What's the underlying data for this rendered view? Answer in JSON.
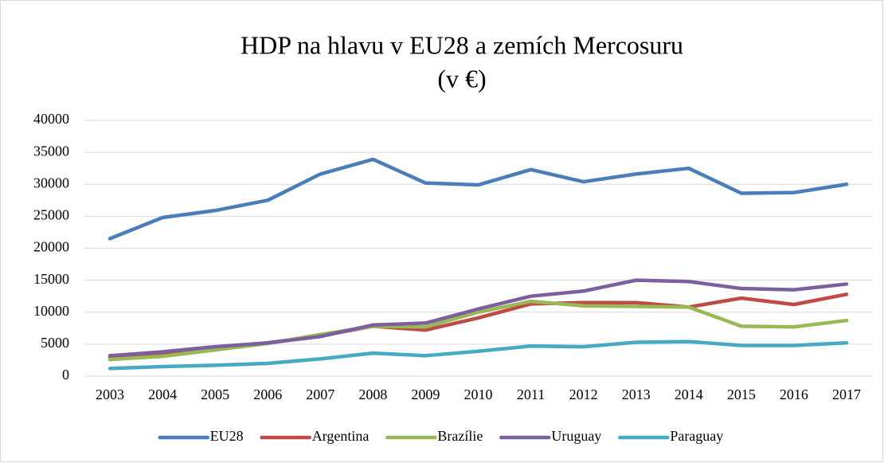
{
  "chart_data": {
    "type": "line",
    "title": "HDP na hlavu v EU28 a zemích Mercosuru",
    "subtitle": "(v €)",
    "categories": [
      "2003",
      "2004",
      "2005",
      "2006",
      "2007",
      "2008",
      "2009",
      "2010",
      "2011",
      "2012",
      "2013",
      "2014",
      "2015",
      "2016",
      "2017"
    ],
    "series": [
      {
        "name": "EU28",
        "color": "#4a7ebb",
        "values": [
          21500,
          24800,
          25900,
          27500,
          31600,
          33900,
          30200,
          29900,
          32300,
          30400,
          31600,
          32500,
          28600,
          28700,
          30000
        ]
      },
      {
        "name": "Argentina",
        "color": "#be4b48",
        "values": [
          3000,
          3500,
          4300,
          5200,
          6300,
          7800,
          7200,
          9100,
          11300,
          11500,
          11500,
          10800,
          12200,
          11200,
          12800
        ]
      },
      {
        "name": "Brazílie",
        "color": "#98b954",
        "values": [
          2600,
          3100,
          4100,
          5100,
          6500,
          7800,
          7700,
          10000,
          11700,
          11000,
          10900,
          10800,
          7800,
          7700,
          8700
        ]
      },
      {
        "name": "Uruguay",
        "color": "#7d5fa0",
        "values": [
          3200,
          3800,
          4600,
          5200,
          6200,
          8000,
          8300,
          10500,
          12500,
          13300,
          15000,
          14800,
          13700,
          13500,
          14400
        ]
      },
      {
        "name": "Paraguay",
        "color": "#46aac5",
        "values": [
          1200,
          1500,
          1700,
          2000,
          2700,
          3600,
          3200,
          3900,
          4700,
          4600,
          5300,
          5400,
          4800,
          4800,
          5200
        ]
      }
    ],
    "ylim": [
      0,
      40000
    ],
    "yticks": [
      0,
      5000,
      10000,
      15000,
      20000,
      25000,
      30000,
      35000,
      40000
    ],
    "grid": true,
    "legend": "bottom"
  }
}
